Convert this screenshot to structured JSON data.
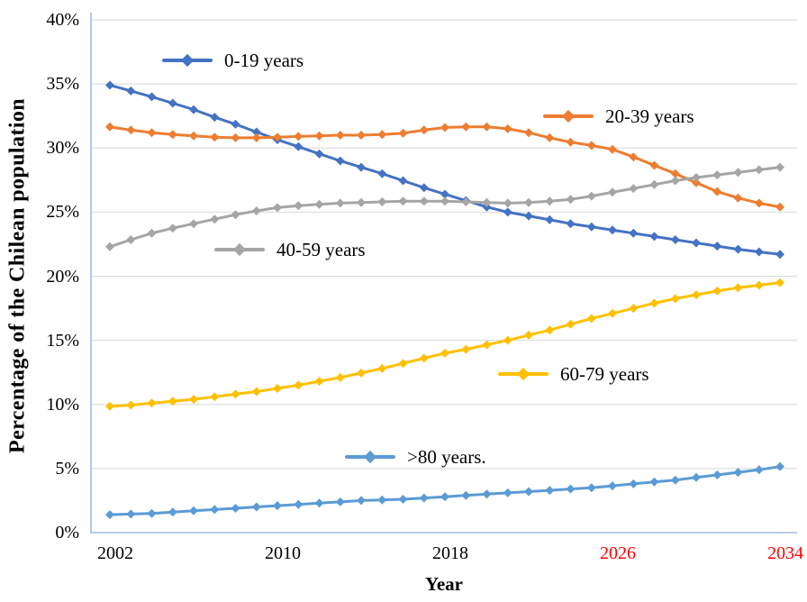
{
  "colors": {
    "axis_line": "#9FBBDF",
    "gridline": "#D8D8D8",
    "text": "#000000",
    "red_tick": "#FF0000"
  },
  "chart_data": {
    "type": "line",
    "title": "",
    "xlabel": "Year",
    "ylabel": "Percentage of the Chilean population",
    "x_range": [
      2002,
      2034
    ],
    "x_step": 1,
    "ylim": [
      0,
      40
    ],
    "y_tick_step": 5,
    "grid": "horizontal",
    "legend_position": "floating-inside-plot",
    "y_tick_labels": [
      "0%",
      "5%",
      "10%",
      "15%",
      "20%",
      "25%",
      "30%",
      "35%",
      "40%"
    ],
    "x_ticks": [
      {
        "label": "2002",
        "year": 2002,
        "color": "#000000"
      },
      {
        "label": "2010",
        "year": 2010,
        "color": "#000000"
      },
      {
        "label": "2018",
        "year": 2018,
        "color": "#000000"
      },
      {
        "label": "2026",
        "year": 2026,
        "color": "#FF0000"
      },
      {
        "label": "2034",
        "year": 2034,
        "color": "#FF0000"
      }
    ],
    "series": [
      {
        "name": "0-19 years",
        "color": "#4472C4",
        "marker": "diamond",
        "values": [
          34.9,
          34.45,
          34.0,
          33.5,
          33.0,
          32.4,
          31.85,
          31.25,
          30.65,
          30.1,
          29.55,
          29.0,
          28.5,
          28.0,
          27.45,
          26.9,
          26.4,
          25.9,
          25.4,
          25.0,
          24.7,
          24.4,
          24.1,
          23.85,
          23.6,
          23.35,
          23.1,
          22.85,
          22.6,
          22.35,
          22.1,
          21.9,
          21.7
        ]
      },
      {
        "name": "20-39 years",
        "color": "#ED7D31",
        "marker": "diamond",
        "values": [
          31.65,
          31.4,
          31.2,
          31.05,
          30.95,
          30.85,
          30.8,
          30.8,
          30.85,
          30.9,
          30.95,
          31.0,
          31.0,
          31.05,
          31.15,
          31.4,
          31.6,
          31.65,
          31.65,
          31.5,
          31.2,
          30.8,
          30.45,
          30.2,
          29.9,
          29.3,
          28.65,
          28.0,
          27.3,
          26.6,
          26.1,
          25.7,
          25.4
        ]
      },
      {
        "name": "40-59 years",
        "color": "#A5A5A5",
        "marker": "diamond",
        "values": [
          22.3,
          22.85,
          23.35,
          23.75,
          24.1,
          24.45,
          24.8,
          25.1,
          25.35,
          25.5,
          25.6,
          25.7,
          25.75,
          25.8,
          25.85,
          25.85,
          25.85,
          25.8,
          25.75,
          25.7,
          25.75,
          25.85,
          26.0,
          26.25,
          26.55,
          26.85,
          27.15,
          27.45,
          27.7,
          27.9,
          28.1,
          28.3,
          28.5
        ]
      },
      {
        "name": "60-79 years",
        "color": "#FFC000",
        "marker": "diamond",
        "values": [
          9.85,
          9.95,
          10.1,
          10.25,
          10.4,
          10.6,
          10.8,
          11.0,
          11.25,
          11.5,
          11.8,
          12.1,
          12.45,
          12.8,
          13.2,
          13.6,
          14.0,
          14.3,
          14.65,
          15.0,
          15.4,
          15.8,
          16.25,
          16.7,
          17.1,
          17.5,
          17.9,
          18.25,
          18.55,
          18.85,
          19.1,
          19.3,
          19.5
        ]
      },
      {
        "name": ">80 years.",
        "color": "#5B9BD5",
        "marker": "diamond",
        "values": [
          1.4,
          1.45,
          1.5,
          1.6,
          1.7,
          1.8,
          1.9,
          2.0,
          2.1,
          2.2,
          2.3,
          2.4,
          2.5,
          2.55,
          2.6,
          2.7,
          2.8,
          2.9,
          3.0,
          3.1,
          3.2,
          3.3,
          3.4,
          3.5,
          3.65,
          3.8,
          3.95,
          4.1,
          4.3,
          4.5,
          4.7,
          4.9,
          5.15
        ]
      }
    ]
  }
}
